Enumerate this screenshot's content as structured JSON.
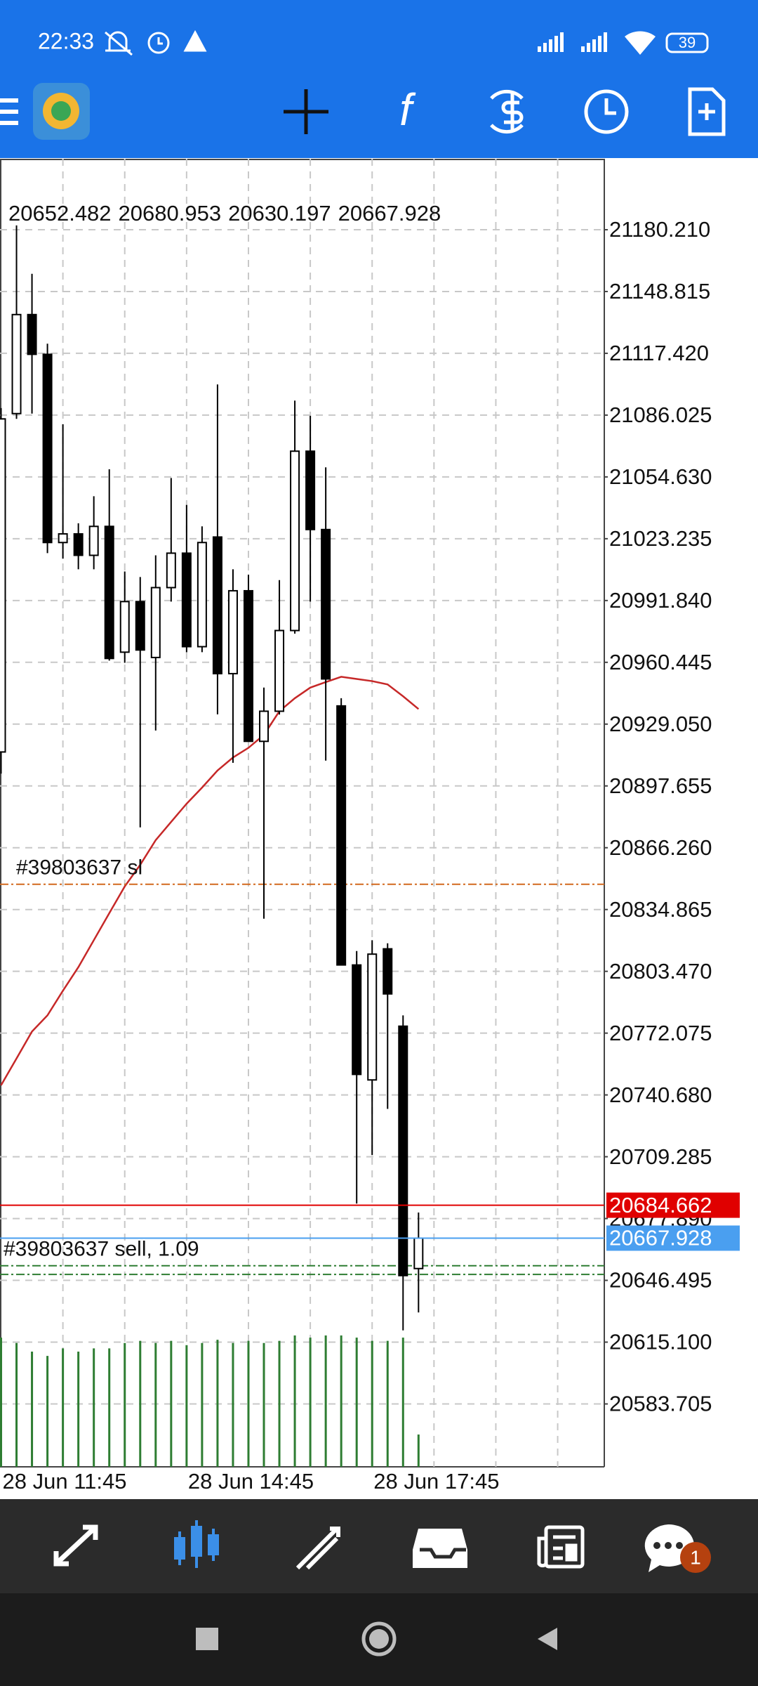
{
  "status_bar": {
    "time": "22:33",
    "battery": "39"
  },
  "chart_data": {
    "type": "candlestick",
    "categories": [
      "28 Jun 11:45",
      null,
      null,
      null,
      null,
      null,
      null,
      null,
      null,
      null,
      null,
      null,
      "28 Jun 14:45",
      null,
      null,
      null,
      null,
      null,
      null,
      null,
      null,
      null,
      null,
      null,
      "28 Jun 17:45",
      null,
      null,
      null
    ],
    "open": [
      20914.9,
      21086.8,
      21137.1,
      21116.9,
      21021.3,
      21025.7,
      21014.8,
      21029.5,
      20965.6,
      20991.3,
      20962.9,
      20998.4,
      21015.9,
      20968.4,
      21024.1,
      20954.7,
      20996.8,
      20920.3,
      20935.6,
      20976.6,
      21067.7,
      21027.9,
      20938.3,
      20806.7,
      20748.3,
      20814.9,
      20775.6,
      20652.482
    ],
    "high": [
      21089.6,
      21182.4,
      21157.8,
      21122.3,
      21081.4,
      21031.1,
      21044.8,
      21058.5,
      21006.6,
      21003.8,
      21014.8,
      21054.1,
      21040.4,
      21029.5,
      21101.6,
      21007.7,
      21005.0,
      20947.6,
      21002.2,
      21093.4,
      21085.7,
      21059.5,
      20942.2,
      20813.8,
      20819.3,
      20817.7,
      20781.1,
      20680.953
    ],
    "low": [
      20903.9,
      21084.1,
      21086.8,
      21015.9,
      21013.1,
      21007.7,
      21007.7,
      20961.3,
      20960.2,
      20876.6,
      20925.8,
      20991.3,
      20965.6,
      20965.6,
      20934.0,
      20909.4,
      20920.3,
      20830.2,
      20933.9,
      20975.0,
      20991.3,
      20910.5,
      20806.7,
      20685.5,
      20710.1,
      20733.6,
      20621.1,
      20630.197
    ],
    "close": [
      21084.1,
      21137.1,
      21116.9,
      21021.3,
      21025.7,
      21014.8,
      21029.5,
      20962.4,
      20991.3,
      20966.7,
      20998.4,
      21015.9,
      20968.4,
      21021.3,
      20954.7,
      20996.8,
      20920.3,
      20935.6,
      20976.6,
      21067.7,
      21027.9,
      20952.0,
      20806.7,
      20751.1,
      20812.2,
      20792.0,
      20648.9,
      20667.928
    ],
    "bull_color": "#ffffff",
    "bear_color": "#000000",
    "moving_average": {
      "color": "#c62828",
      "values": [
        20745.6,
        20759.2,
        20772.9,
        20781.1,
        20793.6,
        20805.6,
        20819.3,
        20833.0,
        20846.6,
        20857.6,
        20870.1,
        20879.4,
        20888.6,
        20896.8,
        20905.5,
        20912.1,
        20917.0,
        20923.6,
        20935.6,
        20942.2,
        20947.6,
        20950.4,
        20953.1,
        20952.0,
        20950.9,
        20949.2,
        20943.2,
        20936.7
      ]
    },
    "volumes": {
      "color": "#2e7d32",
      "values": [
        120,
        115,
        107,
        103,
        110,
        107,
        110,
        110,
        115,
        117,
        115,
        117,
        113,
        115,
        118,
        115,
        117,
        115,
        117,
        122,
        120,
        122,
        122,
        120,
        117,
        117,
        120,
        30
      ]
    },
    "ylim": [
      20551.76,
      21216.25
    ],
    "yticks": [
      {
        "value": 21180.21,
        "label": "21180.210"
      },
      21148.815,
      {
        "value": 21117.42,
        "label": "21117.420"
      },
      21086.025,
      {
        "value": 21054.63,
        "label": "21054.630"
      },
      21023.235,
      {
        "value": 20991.84,
        "label": "20991.840"
      },
      20960.445,
      {
        "value": 20929.05,
        "label": "20929.050"
      },
      20897.655,
      {
        "value": 20866.26,
        "label": "20866.260"
      },
      20834.865,
      {
        "value": 20803.47,
        "label": "20803.470"
      },
      20772.075,
      {
        "value": 20740.68,
        "label": "20740.680"
      },
      20709.285,
      {
        "value": 20677.89,
        "label": "20677.890"
      },
      20646.495,
      {
        "value": 20615.1,
        "label": "20615.100"
      },
      20583.705
    ],
    "grid": true,
    "ask_line": {
      "value": 20684.662,
      "color": "#e00000"
    },
    "bid_color": "#4a9ff0",
    "levels": [
      {
        "label": "#39803637 sl",
        "value": 20847.7,
        "color": "#d2691e"
      },
      {
        "label": "#39803637 sell, 1.09",
        "value": 20653.9,
        "color": "#2e7d32"
      },
      {
        "value": 20649.5,
        "color": "#2e7d32"
      }
    ]
  },
  "bottom_nav": {
    "badge": "1"
  }
}
